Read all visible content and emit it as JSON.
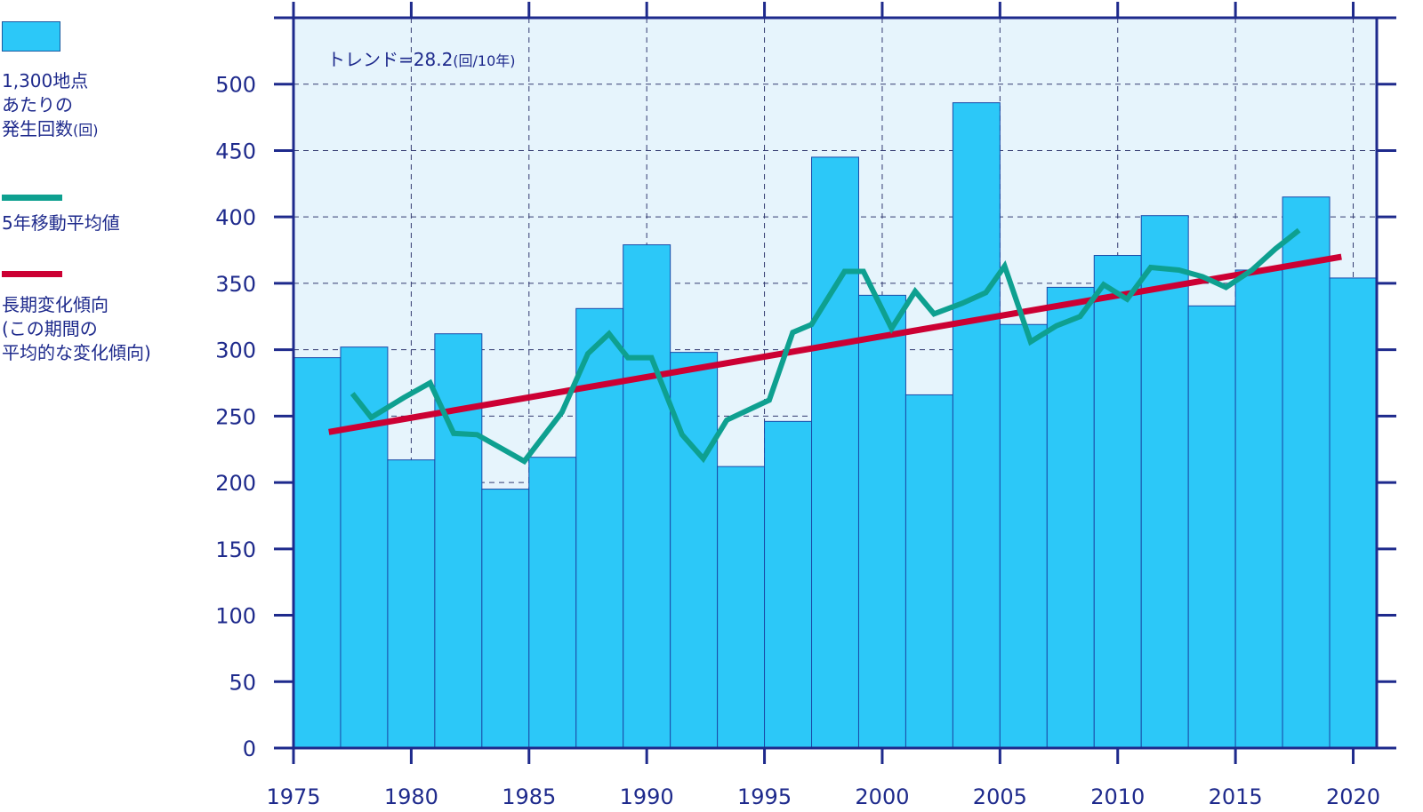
{
  "legend": {
    "bar_label_main": "1,300地点\nあたりの\n発生回数",
    "bar_label_unit": "(回)",
    "moving_avg_label": "5年移動平均値",
    "trend_label": "長期変化傾向\n(この期間の\n平均的な変化傾向)"
  },
  "annotation": {
    "trend_text": "トレンド=28.2",
    "trend_unit": "(回/10年)"
  },
  "colors": {
    "bar": "#2cc8f8",
    "bar_edge": "#1a4aa8",
    "moving_avg": "#0ea090",
    "trend": "#cc0033",
    "axis": "#1e2a8c",
    "plot_bg": "#e6f4fc"
  },
  "chart_data": {
    "type": "bar",
    "title": "",
    "xlabel": "",
    "ylabel": "",
    "xlim": [
      1975,
      2021
    ],
    "ylim": [
      0,
      550
    ],
    "x_ticks": [
      "1975",
      "1980",
      "1985",
      "1990",
      "1995",
      "2000",
      "2005",
      "2010",
      "2015",
      "2020"
    ],
    "y_ticks": [
      "0",
      "50",
      "100",
      "150",
      "200",
      "250",
      "300",
      "350",
      "400",
      "450",
      "500"
    ],
    "grid": "dashed at major ticks",
    "categories": [
      1976,
      1978,
      1980,
      1982,
      1984,
      1986,
      1988,
      1990,
      1992,
      1994,
      1996,
      1998,
      2000,
      2002,
      2004,
      2006,
      2008,
      2010,
      2012,
      2014,
      2016,
      2018,
      2020
    ],
    "series": [
      {
        "name": "1,300地点あたりの発生回数(回)",
        "type": "bar",
        "values": [
          294,
          302,
          217,
          312,
          195,
          219,
          331,
          379,
          298,
          212,
          246,
          445,
          341,
          266,
          486,
          319,
          347,
          371,
          401,
          333,
          360,
          415,
          354
        ]
      },
      {
        "name": "5年移動平均値",
        "type": "line",
        "x": [
          1977.5,
          1978.3,
          1979.7,
          1980.8,
          1981.8,
          1982.8,
          1984.8,
          1986.4,
          1987.5,
          1988.4,
          1989.2,
          1990.2,
          1991.5,
          1992.4,
          1993.4,
          1995.2,
          1996.2,
          1997.0,
          1998.4,
          1999.2,
          2000.4,
          2001.4,
          2002.2,
          2003.4,
          2004.4,
          2005.2,
          2006.3,
          2007.4,
          2008.4,
          2009.4,
          2010.4,
          2011.4,
          2012.6,
          2013.6,
          2014.6,
          2015.7,
          2016.7,
          2017.7
        ],
        "values": [
          267,
          249,
          264,
          275,
          237,
          236,
          216,
          253,
          297,
          312,
          294,
          294,
          236,
          218,
          247,
          262,
          313,
          319,
          359,
          359,
          316,
          344,
          327,
          335,
          343,
          363,
          306,
          318,
          325,
          349,
          338,
          362,
          360,
          355,
          347,
          360,
          376,
          390
        ]
      },
      {
        "name": "長期変化傾向",
        "type": "line",
        "x": [
          1976.5,
          2019.5
        ],
        "values": [
          238,
          370
        ]
      }
    ]
  }
}
